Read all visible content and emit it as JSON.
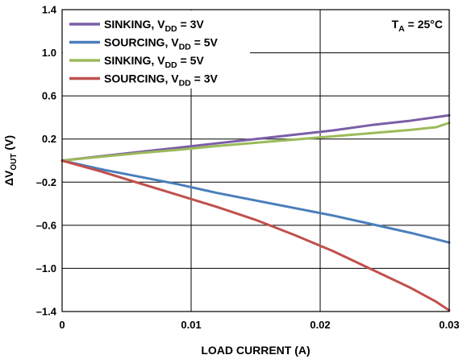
{
  "chart_data": {
    "type": "line",
    "xlabel": "LOAD CURRENT (A)",
    "ylabel": {
      "prefix": "ΔV",
      "sub": "OUT",
      "suffix": " (V)"
    },
    "xlim": [
      0,
      0.03
    ],
    "ylim": [
      -1.4,
      1.4
    ],
    "xticks": [
      0,
      0.01,
      0.02,
      0.03
    ],
    "xtick_labels": [
      "0",
      "0.01",
      "0.02",
      "0.03"
    ],
    "yticks": [
      -1.4,
      -1.0,
      -0.6,
      -0.2,
      0.2,
      0.6,
      1.0,
      1.4
    ],
    "ytick_labels": [
      "–1.4",
      "–1.0",
      "–0.6",
      "–0.2",
      "0.2",
      "0.6",
      "1.0",
      "1.4"
    ],
    "grid": true,
    "legend_position": "top-left",
    "annotation": {
      "prefix": "T",
      "sub": "A",
      "suffix": " = 25°C",
      "position": "top-right"
    },
    "series": [
      {
        "name": "SINKING, V_DD = 3V",
        "legend": {
          "prefix": "SINKING, V",
          "sub": "DD",
          "suffix": " = 3V"
        },
        "color": "#7b5ea7",
        "x": [
          0,
          0.003,
          0.006,
          0.009,
          0.012,
          0.015,
          0.018,
          0.021,
          0.024,
          0.027,
          0.03
        ],
        "y": [
          0,
          0.04,
          0.08,
          0.12,
          0.16,
          0.2,
          0.24,
          0.28,
          0.33,
          0.37,
          0.42
        ]
      },
      {
        "name": "SOURCING, V_DD = 5V",
        "legend": {
          "prefix": "SOURCING, V",
          "sub": "DD",
          "suffix": " = 5V"
        },
        "color": "#4a7ebb",
        "x": [
          0,
          0.003,
          0.006,
          0.009,
          0.012,
          0.015,
          0.018,
          0.021,
          0.024,
          0.027,
          0.03
        ],
        "y": [
          0,
          -0.08,
          -0.15,
          -0.22,
          -0.3,
          -0.37,
          -0.44,
          -0.51,
          -0.59,
          -0.67,
          -0.76
        ]
      },
      {
        "name": "SINKING, V_DD = 5V",
        "legend": {
          "prefix": "SINKING, V",
          "sub": "DD",
          "suffix": " = 5V"
        },
        "color": "#9bbb59",
        "x": [
          0,
          0.003,
          0.006,
          0.009,
          0.012,
          0.015,
          0.018,
          0.021,
          0.024,
          0.027,
          0.029,
          0.03
        ],
        "y": [
          0,
          0.035,
          0.07,
          0.1,
          0.135,
          0.165,
          0.195,
          0.225,
          0.255,
          0.285,
          0.31,
          0.35
        ]
      },
      {
        "name": "SOURCING, V_DD = 3V",
        "legend": {
          "prefix": "SOURCING, V",
          "sub": "DD",
          "suffix": " = 3V"
        },
        "color": "#c0504d",
        "x": [
          0,
          0.003,
          0.006,
          0.009,
          0.012,
          0.015,
          0.018,
          0.021,
          0.024,
          0.027,
          0.029,
          0.03
        ],
        "y": [
          0,
          -0.1,
          -0.21,
          -0.32,
          -0.43,
          -0.55,
          -0.69,
          -0.84,
          -1.01,
          -1.18,
          -1.31,
          -1.39
        ]
      }
    ]
  }
}
